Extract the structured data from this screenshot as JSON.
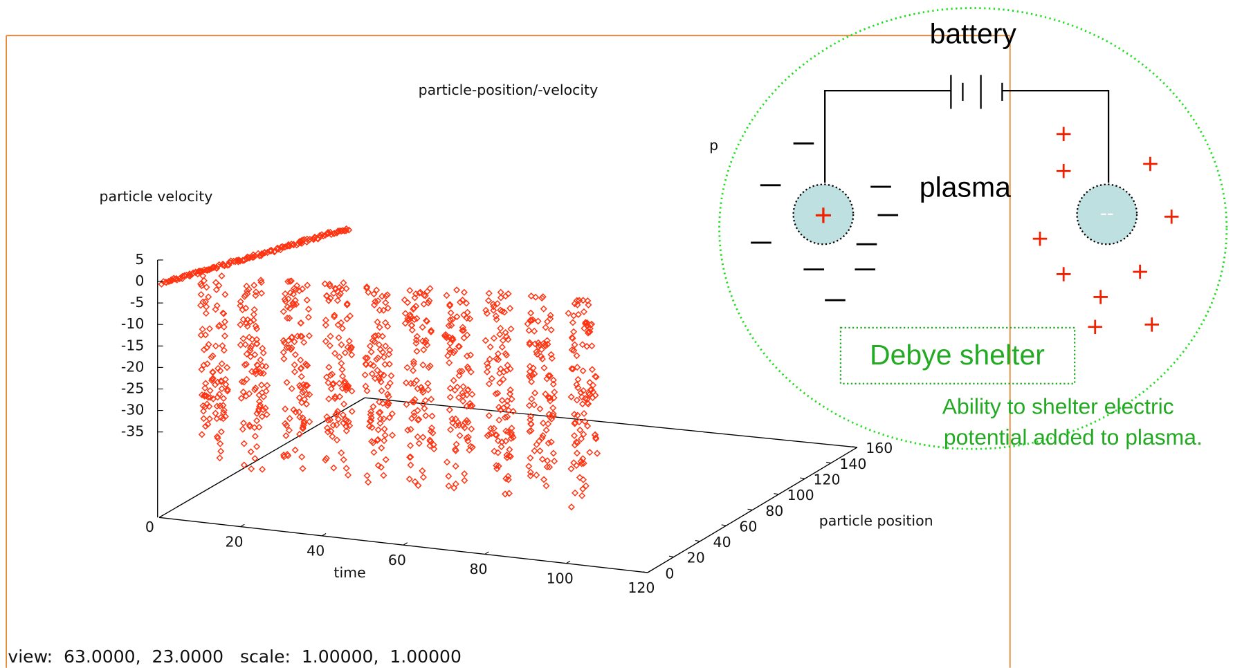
{
  "window": {
    "title": "particle-position/-velocity",
    "z_label": "particle velocity",
    "x_label": "time",
    "y_label": "particle position",
    "hidden_label": "p",
    "z_ticks": [
      5,
      0,
      -5,
      -10,
      -15,
      -20,
      -25,
      -30,
      -35
    ],
    "x_ticks": [
      0,
      20,
      40,
      60,
      80,
      100,
      120
    ],
    "y_ticks": [
      0,
      20,
      40,
      60,
      80,
      100,
      120,
      140,
      160
    ],
    "status": "view:  63.0000,  23.0000   scale:  1.00000,  1.00000"
  },
  "diagram": {
    "battery": "battery",
    "plasma": "plasma",
    "left_electrode": "+",
    "right_electrode": "--",
    "box_title": "Debye shelter",
    "caption_lines": [
      "Ability to shelter electric",
      "potential added to plasma."
    ]
  }
}
